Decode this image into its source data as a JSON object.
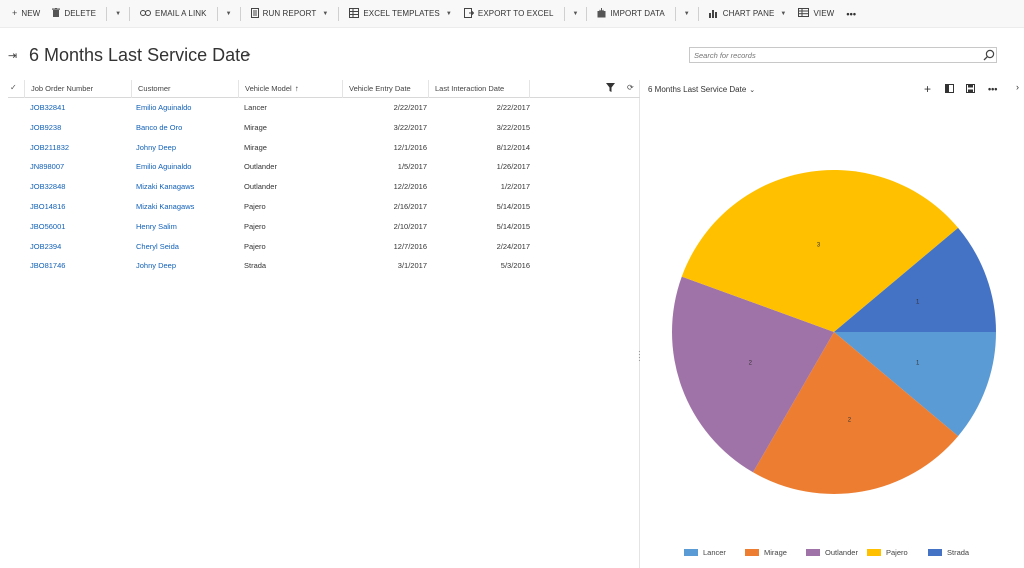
{
  "commandbar": {
    "new": "NEW",
    "delete": "DELETE",
    "email_link": "EMAIL A LINK",
    "run_report": "RUN REPORT",
    "excel_templates": "EXCEL TEMPLATES",
    "export_excel": "EXPORT TO EXCEL",
    "import_data": "IMPORT DATA",
    "chart_pane": "CHART PANE",
    "view": "VIEW",
    "more": "•••"
  },
  "view": {
    "title": "6 Months Last Service Date"
  },
  "search": {
    "placeholder": "Search for records"
  },
  "grid": {
    "columns": [
      "Job Order Number",
      "Customer",
      "Vehicle Model",
      "Vehicle Entry Date",
      "Last Interaction Date"
    ],
    "rows": [
      {
        "job": "JOB32841",
        "customer": "Emilio Aguinaldo",
        "model": "Lancer",
        "entry": "2/22/2017",
        "last": "2/22/2017"
      },
      {
        "job": "JOB9238",
        "customer": "Banco de Oro",
        "model": "Mirage",
        "entry": "3/22/2017",
        "last": "3/22/2015"
      },
      {
        "job": "JOB211832",
        "customer": "Johny Deep",
        "model": "Mirage",
        "entry": "12/1/2016",
        "last": "8/12/2014"
      },
      {
        "job": "JN898007",
        "customer": "Emilio Aguinaldo",
        "model": "Outlander",
        "entry": "1/5/2017",
        "last": "1/26/2017"
      },
      {
        "job": "JOB32848",
        "customer": "Mizaki Kanagaws",
        "model": "Outlander",
        "entry": "12/2/2016",
        "last": "1/2/2017"
      },
      {
        "job": "JBO14816",
        "customer": "Mizaki Kanagaws",
        "model": "Pajero",
        "entry": "2/16/2017",
        "last": "5/14/2015"
      },
      {
        "job": "JBO56001",
        "customer": "Henry Salim",
        "model": "Pajero",
        "entry": "2/10/2017",
        "last": "5/14/2015"
      },
      {
        "job": "JOB2394",
        "customer": "Cheryl Seida",
        "model": "Pajero",
        "entry": "12/7/2016",
        "last": "2/24/2017"
      },
      {
        "job": "JBO81746",
        "customer": "Johny Deep",
        "model": "Strada",
        "entry": "3/1/2017",
        "last": "5/3/2016"
      }
    ]
  },
  "chart_data": {
    "type": "pie",
    "title": "6 Months Last Service Date",
    "categories": [
      "Lancer",
      "Mirage",
      "Outlander",
      "Pajero",
      "Strada"
    ],
    "values": [
      1,
      2,
      2,
      3,
      1
    ],
    "colors": [
      "#5b9bd5",
      "#ed7d31",
      "#a073a8",
      "#ffc000",
      "#4472c4"
    ],
    "legend": "bottom"
  }
}
